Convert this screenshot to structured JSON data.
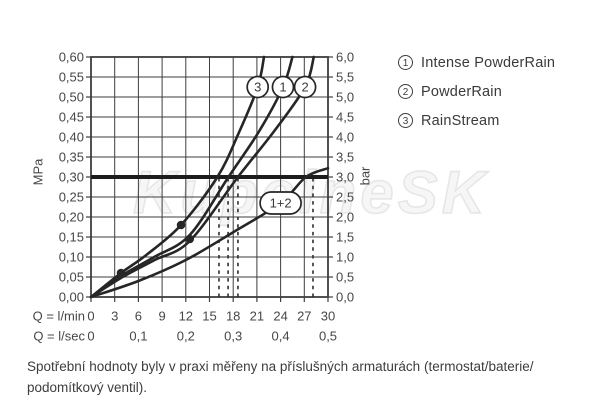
{
  "watermark": "KupelneSK",
  "axes": {
    "left_unit": "MPa",
    "right_unit": "bar",
    "x_row1_label": "Q = l/min",
    "x_row2_label": "Q = l/sec",
    "left_ticks": [
      "0,60",
      "0,55",
      "0,50",
      "0,45",
      "0,40",
      "0,35",
      "0,30",
      "0,25",
      "0,20",
      "0,15",
      "0,10",
      "0,05",
      "0,00"
    ],
    "right_ticks": [
      "6,0",
      "5,5",
      "5,0",
      "4,5",
      "4,0",
      "3,5",
      "3,0",
      "2,5",
      "2,0",
      "1,5",
      "1,0",
      "0,5",
      "0,0"
    ],
    "x_row1_ticks": [
      "0",
      "3",
      "6",
      "9",
      "12",
      "15",
      "18",
      "21",
      "24",
      "27",
      "30"
    ],
    "x_row2_ticks": [
      {
        "label": "0",
        "q": 0
      },
      {
        "label": "0,1",
        "q": 6
      },
      {
        "label": "0,2",
        "q": 12
      },
      {
        "label": "0,3",
        "q": 18
      },
      {
        "label": "0,4",
        "q": 24
      },
      {
        "label": "0,5",
        "q": 30
      }
    ]
  },
  "legend": {
    "items": [
      {
        "number": "1",
        "label": "Intense PowderRain"
      },
      {
        "number": "2",
        "label": "PowderRain"
      },
      {
        "number": "3",
        "label": "RainStream"
      }
    ]
  },
  "caption": {
    "line1": "Spotřební hodnoty byly v praxi měřeny na příslušných armaturách (termostat/baterie/",
    "line2": "podomítkový ventil)."
  },
  "colors": {
    "curve": "#262626",
    "grid": "#3e3e3e",
    "text": "#474747",
    "reference_line": "#1c1c1c",
    "dashed_guide": "#2e2e2e",
    "badge_fill": "#ffffff"
  },
  "chart_data": {
    "type": "line",
    "title": "",
    "xlabel": "Q = l/min",
    "xlabel_secondary": "Q = l/sec",
    "ylabel_left": "MPa",
    "ylabel_right": "bar",
    "xlim": [
      0,
      30
    ],
    "ylim_mpa": [
      0,
      0.6
    ],
    "ylim_bar": [
      0,
      6
    ],
    "x_grid_step": 3,
    "y_grid_step_mpa": 0.05,
    "grid": true,
    "legend_position": "right",
    "reference_line_mpa": 0.3,
    "series": [
      {
        "name": "RainStream",
        "badge": "3",
        "badge_shape": "circle",
        "badge_at": [
          21.1,
          0.525
        ],
        "points": [
          [
            0,
            0
          ],
          [
            3.8,
            0.06
          ],
          [
            7,
            0.105
          ],
          [
            11.4,
            0.18
          ],
          [
            16,
            0.3
          ],
          [
            18.7,
            0.41
          ],
          [
            21.1,
            0.525
          ],
          [
            21.9,
            0.6
          ]
        ]
      },
      {
        "name": "Intense PowderRain",
        "badge": "1",
        "badge_shape": "circle",
        "badge_at": [
          24.3,
          0.525
        ],
        "points": [
          [
            0,
            0
          ],
          [
            4,
            0.055
          ],
          [
            8,
            0.1
          ],
          [
            12.5,
            0.155
          ],
          [
            17.4,
            0.3
          ],
          [
            21.3,
            0.415
          ],
          [
            24.3,
            0.525
          ],
          [
            25.5,
            0.6
          ]
        ]
      },
      {
        "name": "PowderRain",
        "badge": "2",
        "badge_shape": "circle",
        "badge_at": [
          27.1,
          0.525
        ],
        "points": [
          [
            0,
            0
          ],
          [
            4,
            0.05
          ],
          [
            8,
            0.092
          ],
          [
            12.5,
            0.14
          ],
          [
            18.6,
            0.3
          ],
          [
            23.2,
            0.415
          ],
          [
            27.1,
            0.525
          ],
          [
            28.2,
            0.6
          ]
        ]
      },
      {
        "name": "1+2 combined",
        "badge": "1+2",
        "badge_shape": "stadium",
        "badge_at": [
          24.0,
          0.235
        ],
        "points": [
          [
            0,
            0
          ],
          [
            6,
            0.04
          ],
          [
            12,
            0.0925
          ],
          [
            18,
            0.162
          ],
          [
            24,
            0.235
          ],
          [
            27.2,
            0.3
          ],
          [
            30,
            0.322
          ]
        ]
      }
    ],
    "markers_q_mpa": [
      [
        3.8,
        0.06
      ],
      [
        11.4,
        0.18
      ],
      [
        12.5,
        0.145
      ]
    ],
    "dashed_guides_q": [
      16.2,
      17.35,
      18.6,
      28.1
    ],
    "dashed_guides_top_mpa": 0.3
  }
}
